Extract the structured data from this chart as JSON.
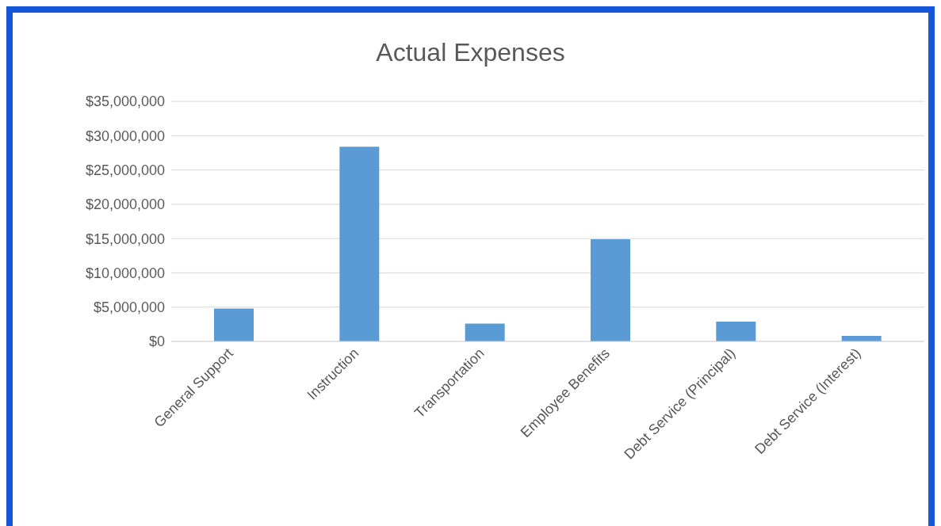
{
  "chart_data": {
    "type": "bar",
    "title": "Actual Expenses",
    "categories": [
      "General Support",
      "Instruction",
      "Transportation",
      "Employee Benefits",
      "Debt Service (Principal)",
      "Debt Service (Interest)"
    ],
    "values": [
      4800000,
      28400000,
      2600000,
      14900000,
      2900000,
      800000
    ],
    "color": "#5b9bd5",
    "ylim": [
      0,
      35000000
    ],
    "yticks": [
      {
        "value": 0,
        "label": "$0"
      },
      {
        "value": 5000000,
        "label": "$5,000,000"
      },
      {
        "value": 10000000,
        "label": "$10,000,000"
      },
      {
        "value": 15000000,
        "label": "$15,000,000"
      },
      {
        "value": 20000000,
        "label": "$20,000,000"
      },
      {
        "value": 25000000,
        "label": "$25,000,000"
      },
      {
        "value": 30000000,
        "label": "$30,000,000"
      },
      {
        "value": 35000000,
        "label": "$35,000,000"
      }
    ],
    "grid": "y",
    "legend": false
  }
}
